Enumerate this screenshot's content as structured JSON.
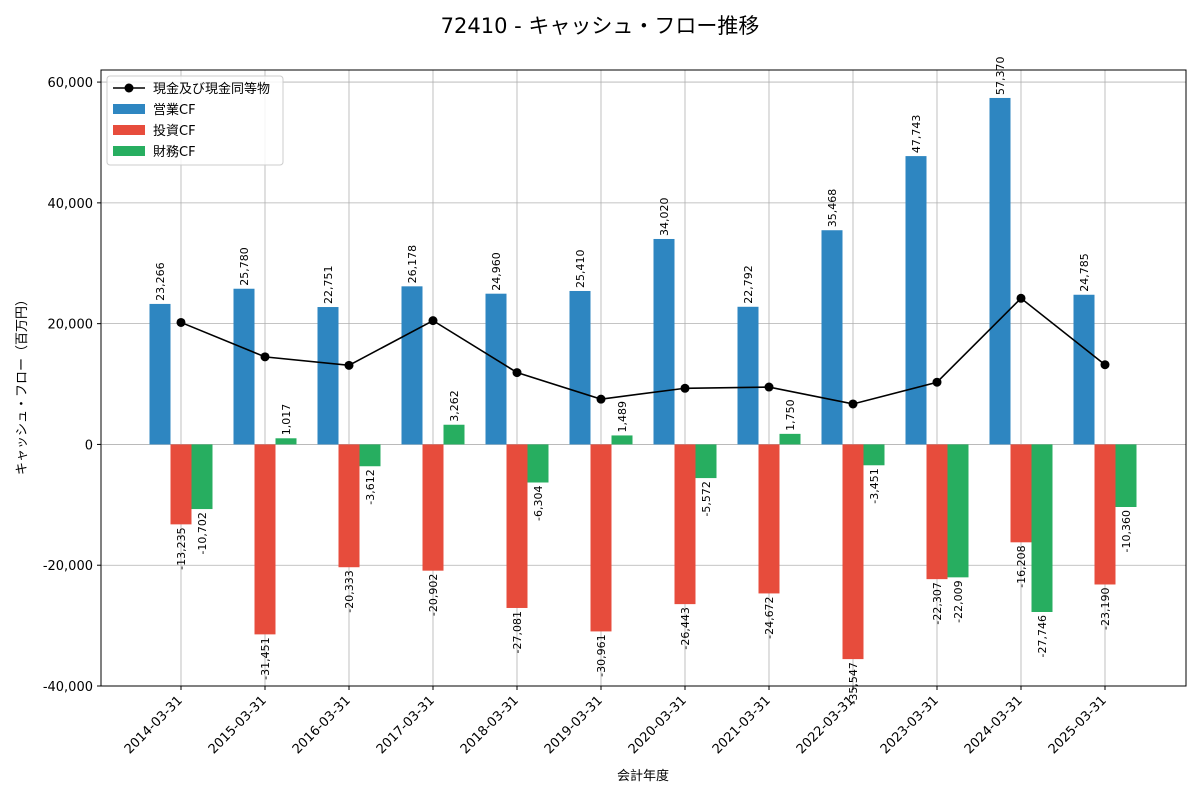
{
  "chart_data": {
    "type": "bar",
    "title": "72410 - キャッシュ・フロー推移",
    "xlabel": "会計年度",
    "ylabel": "キャッシュ・フロー（百万円）",
    "ylim": [
      -40000,
      62000
    ],
    "yticks": [
      -40000,
      -20000,
      0,
      20000,
      40000,
      60000
    ],
    "ytick_labels": [
      "-40,000",
      "-20,000",
      "0",
      "20,000",
      "40,000",
      "60,000"
    ],
    "grid": true,
    "legend_position": "top-left",
    "categories": [
      "2014-03-31",
      "2015-03-31",
      "2016-03-31",
      "2017-03-31",
      "2018-03-31",
      "2019-03-31",
      "2020-03-31",
      "2021-03-31",
      "2022-03-31",
      "2023-03-31",
      "2024-03-31",
      "2025-03-31"
    ],
    "series": [
      {
        "name": "営業CF",
        "kind": "bar",
        "color": "#2e86c1",
        "values": [
          23266,
          25780,
          22751,
          26178,
          24960,
          25410,
          34020,
          22792,
          35468,
          47743,
          57370,
          24785
        ],
        "labels": [
          "23,266",
          "25,780",
          "22,751",
          "26,178",
          "24,960",
          "25,410",
          "34,020",
          "22,792",
          "35,468",
          "47,743",
          "57,370",
          "24,785"
        ]
      },
      {
        "name": "投資CF",
        "kind": "bar",
        "color": "#e74c3c",
        "values": [
          -13235,
          -31451,
          -20333,
          -20902,
          -27081,
          -30961,
          -26443,
          -24672,
          -35547,
          -22307,
          -16208,
          -23190
        ],
        "labels": [
          "-13,235",
          "-31,451",
          "-20,333",
          "-20,902",
          "-27,081",
          "-30,961",
          "-26,443",
          "-24,672",
          "-35,547",
          "-22,307",
          "-16,208",
          "-23,190"
        ]
      },
      {
        "name": "財務CF",
        "kind": "bar",
        "color": "#27ae60",
        "values": [
          -10702,
          1017,
          -3612,
          3262,
          -6304,
          1489,
          -5572,
          1750,
          -3451,
          -22009,
          -27746,
          -10360
        ],
        "labels": [
          "-10,702",
          "1,017",
          "-3,612",
          "3,262",
          "-6,304",
          "1,489",
          "-5,572",
          "1,750",
          "-3,451",
          "-22,009",
          "-27,746",
          "-10,360"
        ]
      },
      {
        "name": "現金及び現金同等物",
        "kind": "line",
        "color": "#000000",
        "values": [
          20200,
          14500,
          13100,
          20500,
          11900,
          7500,
          9300,
          9500,
          6700,
          10300,
          24200,
          13200
        ]
      }
    ]
  }
}
